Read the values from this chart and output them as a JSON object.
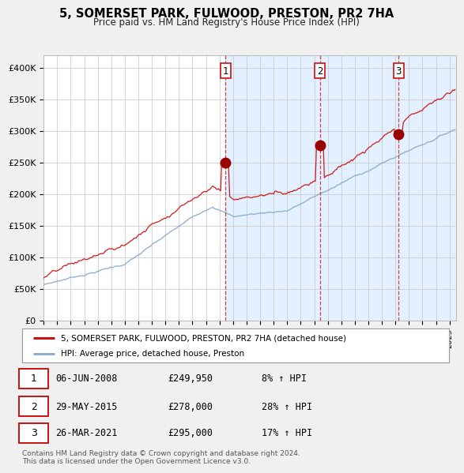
{
  "title": "5, SOMERSET PARK, FULWOOD, PRESTON, PR2 7HA",
  "subtitle": "Price paid vs. HM Land Registry's House Price Index (HPI)",
  "background_color": "#f0f0f0",
  "plot_bg_color": "#ffffff",
  "grid_color": "#cccccc",
  "shade_color": "#ddeeff",
  "ylim": [
    0,
    420000
  ],
  "yticks": [
    0,
    50000,
    100000,
    150000,
    200000,
    250000,
    300000,
    350000,
    400000
  ],
  "ytick_labels": [
    "£0",
    "£50K",
    "£100K",
    "£150K",
    "£200K",
    "£250K",
    "£300K",
    "£350K",
    "£400K"
  ],
  "xlim_start": 1995,
  "xlim_end": 2025.5,
  "xticks": [
    1995,
    1996,
    1997,
    1998,
    1999,
    2000,
    2001,
    2002,
    2003,
    2004,
    2005,
    2006,
    2007,
    2008,
    2009,
    2010,
    2011,
    2012,
    2013,
    2014,
    2015,
    2016,
    2017,
    2018,
    2019,
    2020,
    2021,
    2022,
    2023,
    2024,
    2025
  ],
  "house_color": "#cc1111",
  "hpi_color": "#88aacc",
  "sale1_x": 2008.44,
  "sale1_y": 249950,
  "sale2_x": 2015.41,
  "sale2_y": 278000,
  "sale3_x": 2021.23,
  "sale3_y": 295000,
  "vline_color": "#cc2222",
  "marker_color": "#990000",
  "legend_house_label": "5, SOMERSET PARK, FULWOOD, PRESTON, PR2 7HA (detached house)",
  "legend_hpi_label": "HPI: Average price, detached house, Preston",
  "table_rows": [
    {
      "num": "1",
      "date": "06-JUN-2008",
      "price": "£249,950",
      "change": "8% ↑ HPI"
    },
    {
      "num": "2",
      "date": "29-MAY-2015",
      "price": "£278,000",
      "change": "28% ↑ HPI"
    },
    {
      "num": "3",
      "date": "26-MAR-2021",
      "price": "£295,000",
      "change": "17% ↑ HPI"
    }
  ],
  "footer": "Contains HM Land Registry data © Crown copyright and database right 2024.\nThis data is licensed under the Open Government Licence v3.0."
}
